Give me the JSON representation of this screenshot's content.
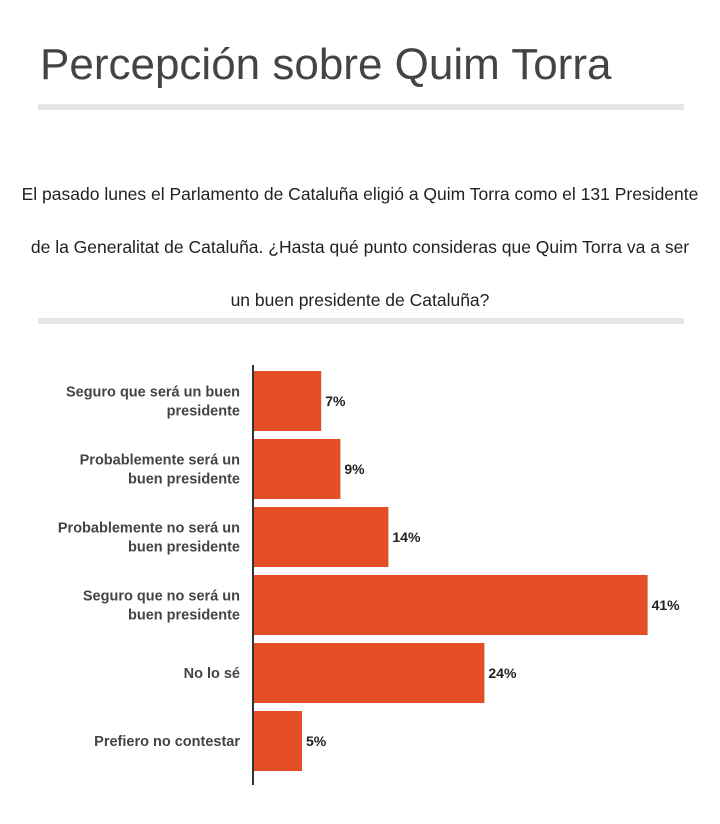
{
  "title": "Percepción sobre Quim Torra",
  "description": "El pasado lunes el Parlamento de Cataluña eligió a Quim Torra como el 131 Presidente de la Generalitat de Cataluña. ¿Hasta qué punto consideras que Quim Torra va a ser un buen presidente de Cataluña?",
  "chart_data": {
    "type": "bar",
    "orientation": "horizontal",
    "categories": [
      [
        "Seguro que será un buen",
        "presidente"
      ],
      [
        "Probablemente será un",
        "buen presidente"
      ],
      [
        "Probablemente no será un",
        "buen presidente"
      ],
      [
        "Seguro que no será un",
        "buen presidente"
      ],
      [
        "No lo sé"
      ],
      [
        "Prefiero no contestar"
      ]
    ],
    "values": [
      7,
      9,
      14,
      41,
      24,
      5
    ],
    "value_labels": [
      "7%",
      "9%",
      "14%",
      "41%",
      "24%",
      "5%"
    ],
    "unit": "%",
    "color": "#e44d26",
    "xlim": [
      0,
      42
    ]
  }
}
